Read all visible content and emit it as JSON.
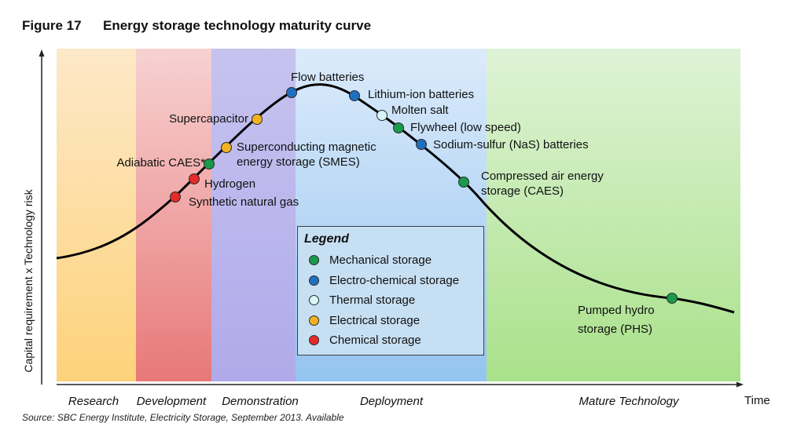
{
  "figure": {
    "number": "Figure 17",
    "title": "Energy storage technology maturity curve"
  },
  "axes": {
    "y_label": "Capital requirement x Technology risk",
    "x_label": "Time"
  },
  "phases": [
    {
      "label": "Research",
      "color_top": "#fde8c8",
      "color_bottom": "#fdd27a"
    },
    {
      "label": "Development",
      "color_top": "#f7d2d2",
      "color_bottom": "#e87878"
    },
    {
      "label": "Demonstration",
      "color_top": "#c6c3ef",
      "color_bottom": "#b0aaea"
    },
    {
      "label": "Deployment",
      "color_top": "#dcebfb",
      "color_bottom": "#94c4f0"
    },
    {
      "label": "Mature Technology",
      "color_top": "#dff3d6",
      "color_bottom": "#a9e18a"
    }
  ],
  "technologies": [
    {
      "name": "Synthetic natural gas",
      "category": "chemical"
    },
    {
      "name": "Hydrogen",
      "category": "chemical"
    },
    {
      "name": "Adiabatic CAES*",
      "category": "mechanical"
    },
    {
      "name": "Superconducting magnetic energy storage (SMES)",
      "line1": "Superconducting magnetic",
      "line2": "energy storage (SMES)",
      "category": "electrical"
    },
    {
      "name": "Supercapacitor",
      "category": "electrical"
    },
    {
      "name": "Flow batteries",
      "category": "electrochemical"
    },
    {
      "name": "Lithium-ion batteries",
      "category": "electrochemical"
    },
    {
      "name": "Molten salt",
      "category": "thermal"
    },
    {
      "name": "Flywheel (low speed)",
      "category": "mechanical"
    },
    {
      "name": "Sodium-sulfur (NaS) batteries",
      "category": "electrochemical"
    },
    {
      "name": "Compressed air energy storage (CAES)",
      "line1": "Compressed air energy",
      "line2": "storage (CAES)",
      "category": "mechanical"
    },
    {
      "name": "Pumped hydro storage (PHS)",
      "line1": "Pumped hydro",
      "line2": "storage (PHS)",
      "category": "mechanical"
    }
  ],
  "legend": {
    "title": "Legend",
    "items": [
      {
        "key": "mechanical",
        "label": "Mechanical storage",
        "color": "#1a9a4a"
      },
      {
        "key": "electrochemical",
        "label": "Electro-chemical storage",
        "color": "#1f6fc0"
      },
      {
        "key": "thermal",
        "label": "Thermal storage",
        "color": "#d8f6f8"
      },
      {
        "key": "electrical",
        "label": "Electrical storage",
        "color": "#f2b321"
      },
      {
        "key": "chemical",
        "label": "Chemical storage",
        "color": "#e42a2a"
      }
    ]
  },
  "source_text": "Source: SBC Energy Institute, Electricity Storage, September 2013. Available"
}
